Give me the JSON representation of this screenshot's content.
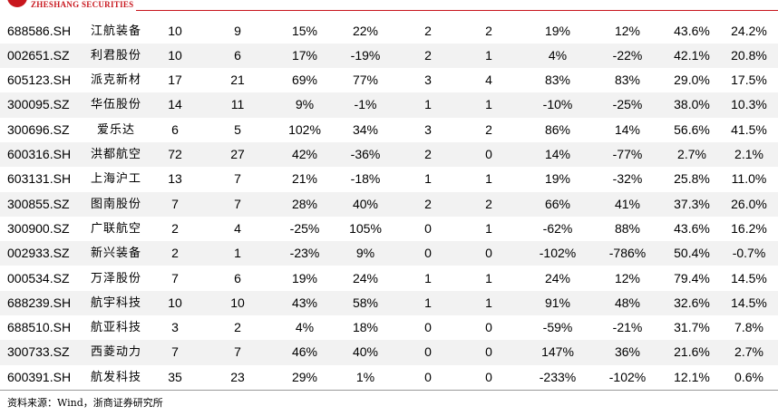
{
  "header": {
    "logo_text": "ZHESHANG SECURITIES"
  },
  "table": {
    "rows": [
      [
        "688586.SH",
        "江航装备",
        "10",
        "9",
        "15%",
        "22%",
        "2",
        "2",
        "19%",
        "12%",
        "43.6%",
        "24.2%"
      ],
      [
        "002651.SZ",
        "利君股份",
        "10",
        "6",
        "17%",
        "-19%",
        "2",
        "1",
        "4%",
        "-22%",
        "42.1%",
        "20.8%"
      ],
      [
        "605123.SH",
        "派克新材",
        "17",
        "21",
        "69%",
        "77%",
        "3",
        "4",
        "83%",
        "83%",
        "29.0%",
        "17.5%"
      ],
      [
        "300095.SZ",
        "华伍股份",
        "14",
        "11",
        "9%",
        "-1%",
        "1",
        "1",
        "-10%",
        "-25%",
        "38.0%",
        "10.3%"
      ],
      [
        "300696.SZ",
        "爱乐达",
        "6",
        "5",
        "102%",
        "34%",
        "3",
        "2",
        "86%",
        "14%",
        "56.6%",
        "41.5%"
      ],
      [
        "600316.SH",
        "洪都航空",
        "72",
        "27",
        "42%",
        "-36%",
        "2",
        "0",
        "14%",
        "-77%",
        "2.7%",
        "2.1%"
      ],
      [
        "603131.SH",
        "上海沪工",
        "13",
        "7",
        "21%",
        "-18%",
        "1",
        "1",
        "19%",
        "-32%",
        "25.8%",
        "11.0%"
      ],
      [
        "300855.SZ",
        "图南股份",
        "7",
        "7",
        "28%",
        "40%",
        "2",
        "2",
        "66%",
        "41%",
        "37.3%",
        "26.0%"
      ],
      [
        "300900.SZ",
        "广联航空",
        "2",
        "4",
        "-25%",
        "105%",
        "0",
        "1",
        "-62%",
        "88%",
        "43.6%",
        "16.2%"
      ],
      [
        "002933.SZ",
        "新兴装备",
        "2",
        "1",
        "-23%",
        "9%",
        "0",
        "0",
        "-102%",
        "-786%",
        "50.4%",
        "-0.7%"
      ],
      [
        "000534.SZ",
        "万泽股份",
        "7",
        "6",
        "19%",
        "24%",
        "1",
        "1",
        "24%",
        "12%",
        "79.4%",
        "14.5%"
      ],
      [
        "688239.SH",
        "航宇科技",
        "10",
        "10",
        "43%",
        "58%",
        "1",
        "1",
        "91%",
        "48%",
        "32.6%",
        "14.5%"
      ],
      [
        "688510.SH",
        "航亚科技",
        "3",
        "2",
        "4%",
        "18%",
        "0",
        "0",
        "-59%",
        "-21%",
        "31.7%",
        "7.8%"
      ],
      [
        "300733.SZ",
        "西菱动力",
        "7",
        "7",
        "46%",
        "40%",
        "0",
        "0",
        "147%",
        "36%",
        "21.6%",
        "2.7%"
      ],
      [
        "600391.SH",
        "航发科技",
        "35",
        "23",
        "29%",
        "1%",
        "0",
        "0",
        "-233%",
        "-102%",
        "12.1%",
        "0.6%"
      ]
    ]
  },
  "footer": {
    "source": "资料来源：Wind，浙商证券研究所"
  }
}
